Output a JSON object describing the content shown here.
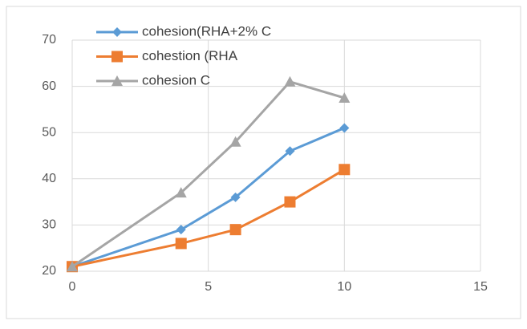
{
  "chart_data": {
    "type": "line",
    "x": [
      0,
      4,
      6,
      8,
      10
    ],
    "series": [
      {
        "name": "cohesion(RHA+2% C",
        "color": "#5b9bd5",
        "marker": "diamond",
        "values": [
          21,
          29,
          36,
          46,
          51
        ]
      },
      {
        "name": "cohestion (RHA",
        "color": "#ed7d31",
        "marker": "square",
        "values": [
          21,
          26,
          29,
          35,
          42
        ]
      },
      {
        "name": "cohesion C",
        "color": "#a5a5a5",
        "marker": "triangle",
        "values": [
          21,
          37,
          48,
          61,
          57.5
        ]
      }
    ],
    "xlim": [
      0,
      15
    ],
    "xticks": [
      0,
      5,
      10,
      15
    ],
    "ylim": [
      20,
      70
    ],
    "yticks": [
      20,
      30,
      40,
      50,
      60,
      70
    ],
    "grid": true,
    "legend": "top-left"
  }
}
